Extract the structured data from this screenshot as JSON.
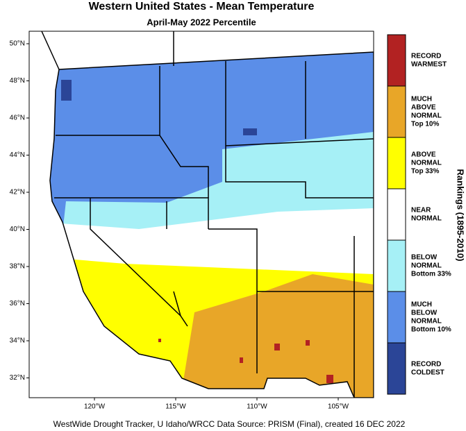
{
  "title": "Western United States - Mean Temperature",
  "subtitle": "April-May 2022 Percentile",
  "lat_labels": [
    "50°N",
    "48°N",
    "46°N",
    "44°N",
    "42°N",
    "40°N",
    "38°N",
    "36°N",
    "34°N",
    "32°N"
  ],
  "lon_labels": [
    "120°W",
    "115°W",
    "110°W",
    "105°W"
  ],
  "legend": {
    "title": "Rankings (1895-2010)",
    "classes": [
      {
        "lines": [
          "RECORD",
          "WARMEST"
        ],
        "color": "#b22222"
      },
      {
        "lines": [
          "MUCH",
          "ABOVE",
          "NORMAL",
          "Top 10%"
        ],
        "color": "#e8a628"
      },
      {
        "lines": [
          "ABOVE",
          "NORMAL",
          "Top 33%"
        ],
        "color": "#ffff00"
      },
      {
        "lines": [
          "NEAR",
          "NORMAL"
        ],
        "color": "#ffffff"
      },
      {
        "lines": [
          "BELOW",
          "NORMAL",
          "Bottom 33%"
        ],
        "color": "#a6f0f6"
      },
      {
        "lines": [
          "MUCH",
          "BELOW",
          "NORMAL",
          "Bottom 10%"
        ],
        "color": "#5b8ee8"
      },
      {
        "lines": [
          "RECORD",
          "COLDEST"
        ],
        "color": "#2b4597"
      }
    ]
  },
  "footer": "WestWide Drought Tracker, U Idaho/WRCC Data Source: PRISM (Final), created 16 DEC 2022"
}
